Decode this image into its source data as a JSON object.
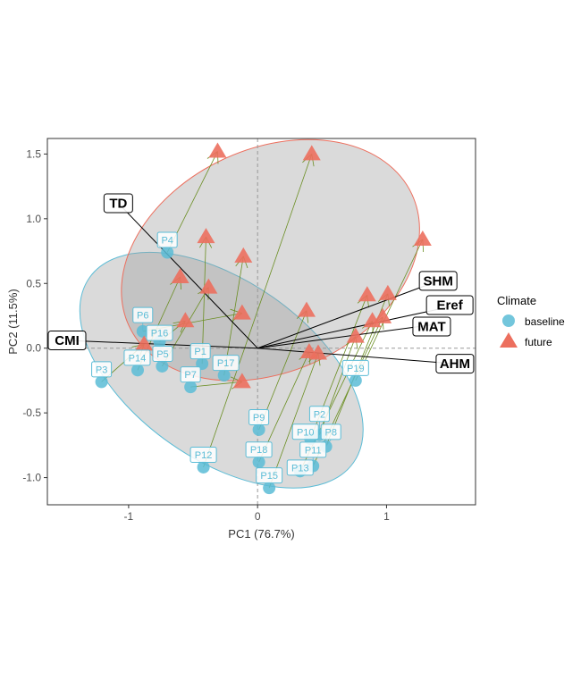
{
  "chart_data": {
    "type": "scatter",
    "xlabel": "PC1 (76.7%)",
    "ylabel": "PC2 (11.5%)",
    "xlim": [
      -1.63,
      1.69
    ],
    "ylim": [
      -1.21,
      1.62
    ],
    "xticks": [
      -1,
      0,
      1
    ],
    "xtick_labels": [
      "-1",
      "0",
      "1"
    ],
    "yticks": [
      -1.0,
      -0.5,
      0.0,
      0.5,
      1.0,
      1.5
    ],
    "ytick_labels": [
      "-1.0",
      "-0.5",
      "0.0",
      "0.5",
      "1.0",
      "1.5"
    ],
    "grid": false,
    "legend": {
      "title": "Climate",
      "placement": "right",
      "entries": [
        "baseline",
        "future"
      ]
    },
    "colors": {
      "baseline": "#5bbcd6",
      "future": "#ec6f5e",
      "segment": "#6b8e23",
      "ellipse_fill": "#bdbdbd"
    },
    "baseline": [
      {
        "label": "P4",
        "x": -0.7,
        "y": 0.74
      },
      {
        "label": "P6",
        "x": -0.89,
        "y": 0.13
      },
      {
        "label": "P16",
        "x": -0.76,
        "y": 0.05
      },
      {
        "label": "P3",
        "x": -1.21,
        "y": -0.26
      },
      {
        "label": "P14",
        "x": -0.93,
        "y": -0.17
      },
      {
        "label": "P5",
        "x": -0.74,
        "y": -0.14
      },
      {
        "label": "P1",
        "x": -0.43,
        "y": -0.12
      },
      {
        "label": "P7",
        "x": -0.52,
        "y": -0.3
      },
      {
        "label": "P17",
        "x": -0.26,
        "y": -0.21
      },
      {
        "label": "P19",
        "x": 0.76,
        "y": -0.25
      },
      {
        "label": "P9",
        "x": 0.01,
        "y": -0.63
      },
      {
        "label": "P12",
        "x": -0.42,
        "y": -0.92
      },
      {
        "label": "P18",
        "x": 0.01,
        "y": -0.88
      },
      {
        "label": "P15",
        "x": 0.09,
        "y": -1.08
      },
      {
        "label": "P10",
        "x": 0.41,
        "y": -0.7
      },
      {
        "label": "P2",
        "x": 0.48,
        "y": -0.67
      },
      {
        "label": "P8",
        "x": 0.53,
        "y": -0.76
      },
      {
        "label": "P11",
        "x": 0.43,
        "y": -0.91
      },
      {
        "label": "P13",
        "x": 0.33,
        "y": -0.95
      }
    ],
    "future": [
      {
        "x": -0.31,
        "y": 1.52
      },
      {
        "x": -0.12,
        "y": 0.27
      },
      {
        "x": -0.56,
        "y": 0.21
      },
      {
        "x": -0.88,
        "y": 0.03
      },
      {
        "x": -0.6,
        "y": 0.55
      },
      {
        "x": -0.38,
        "y": 0.47
      },
      {
        "x": -0.4,
        "y": 0.86
      },
      {
        "x": -0.12,
        "y": -0.26
      },
      {
        "x": -0.11,
        "y": 0.71
      },
      {
        "x": 1.28,
        "y": 0.84
      },
      {
        "x": 0.38,
        "y": 0.29
      },
      {
        "x": 0.42,
        "y": 1.5
      },
      {
        "x": 0.4,
        "y": -0.03
      },
      {
        "x": 0.47,
        "y": -0.04
      },
      {
        "x": 0.85,
        "y": 0.41
      },
      {
        "x": 0.76,
        "y": 0.09
      },
      {
        "x": 1.01,
        "y": 0.42
      },
      {
        "x": 0.97,
        "y": 0.24
      },
      {
        "x": 0.89,
        "y": 0.21
      }
    ],
    "loadings": [
      {
        "label": "TD",
        "x": -1.08,
        "y": 1.12
      },
      {
        "label": "CMI",
        "x": -1.49,
        "y": 0.06
      },
      {
        "label": "SHM",
        "x": 1.4,
        "y": 0.52
      },
      {
        "label": "Eref",
        "x": 1.49,
        "y": 0.32
      },
      {
        "label": "MAT",
        "x": 1.35,
        "y": 0.18
      },
      {
        "label": "AHM",
        "x": 1.53,
        "y": -0.12
      }
    ],
    "ellipses": [
      {
        "group": "baseline",
        "cx": -0.28,
        "cy": -0.17,
        "a": 1.25,
        "b": 0.69,
        "angle": -35
      },
      {
        "group": "future",
        "cx": 0.1,
        "cy": 0.68,
        "a": 1.21,
        "b": 0.86,
        "angle": 25
      }
    ]
  }
}
